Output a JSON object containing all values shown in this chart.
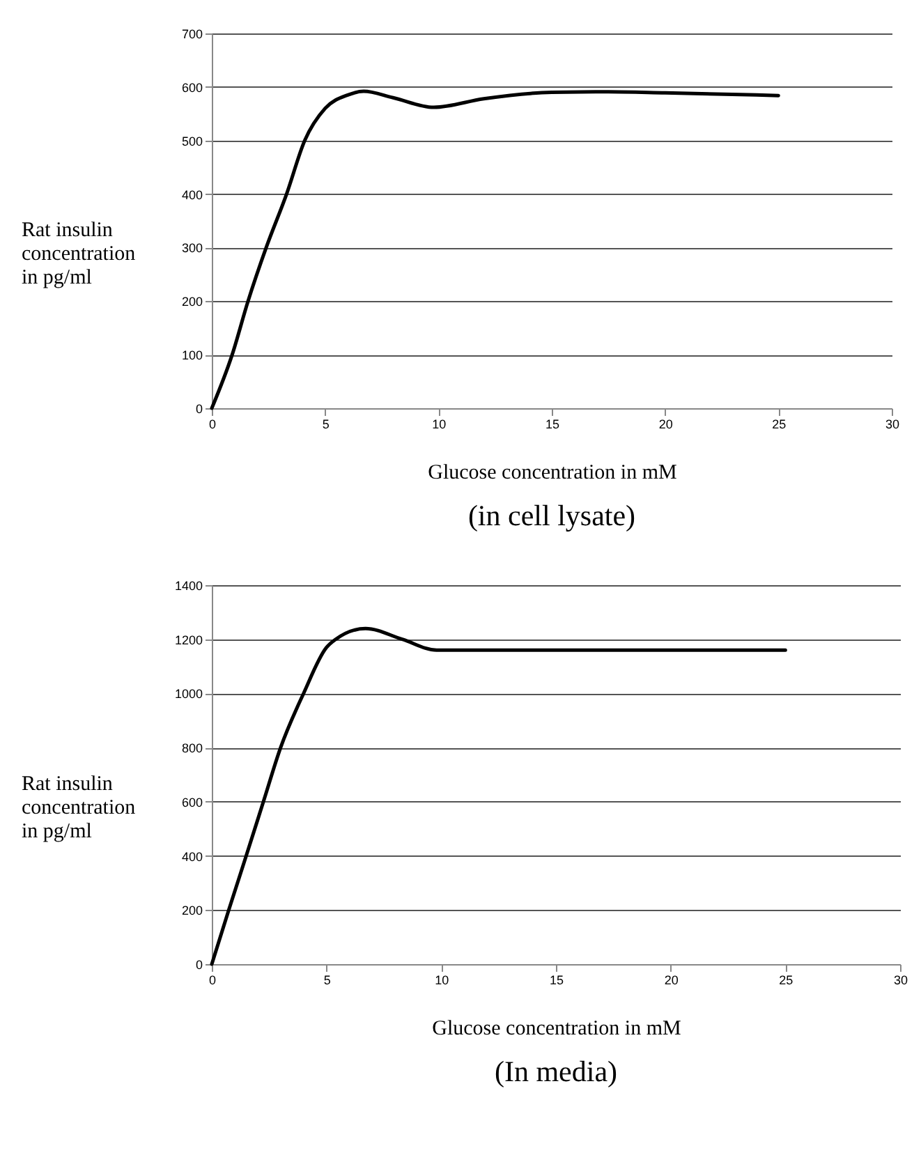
{
  "chart_data": [
    {
      "type": "line",
      "xlabel": "Glucose concentration in mM",
      "ylabel": "Rat insulin concentration in pg/ml",
      "annotations": [
        "(in cell lysate)"
      ],
      "x": [
        0,
        0.9,
        1.6,
        2.4,
        3.3,
        4.1,
        5,
        6,
        6.7,
        8,
        9.8,
        12,
        15,
        17.5,
        20,
        25
      ],
      "series": [
        {
          "color": "#000000",
          "values": [
            0,
            100,
            200,
            300,
            400,
            500,
            560,
            585,
            592,
            580,
            562,
            578,
            590,
            591,
            589,
            584
          ]
        }
      ],
      "xlim": [
        0,
        30
      ],
      "xticks": [
        0,
        5,
        10,
        15,
        20,
        25,
        30
      ],
      "ylim": [
        0,
        700
      ],
      "yticks": [
        0,
        100,
        200,
        300,
        400,
        500,
        600,
        700
      ],
      "grid": "y",
      "marker": "none",
      "line_style": "solid"
    },
    {
      "type": "line",
      "xlabel": "Glucose concentration in mM",
      "ylabel": "Rat insulin concentration in pg/ml",
      "annotations": [
        "(In media)"
      ],
      "x": [
        0,
        0.74,
        1.5,
        2.25,
        3,
        4,
        5,
        5.4,
        6.7,
        8.3,
        9.8,
        25
      ],
      "series": [
        {
          "color": "#000000",
          "values": [
            0,
            200,
            400,
            600,
            800,
            1000,
            1170,
            1200,
            1240,
            1200,
            1160,
            1160
          ]
        }
      ],
      "xlim": [
        0,
        30
      ],
      "xticks": [
        0,
        5,
        10,
        15,
        20,
        25,
        30
      ],
      "ylim": [
        0,
        1400
      ],
      "yticks": [
        0,
        200,
        400,
        600,
        800,
        1000,
        1200,
        1400
      ],
      "grid": "y",
      "marker": "none",
      "line_style": "solid"
    }
  ]
}
